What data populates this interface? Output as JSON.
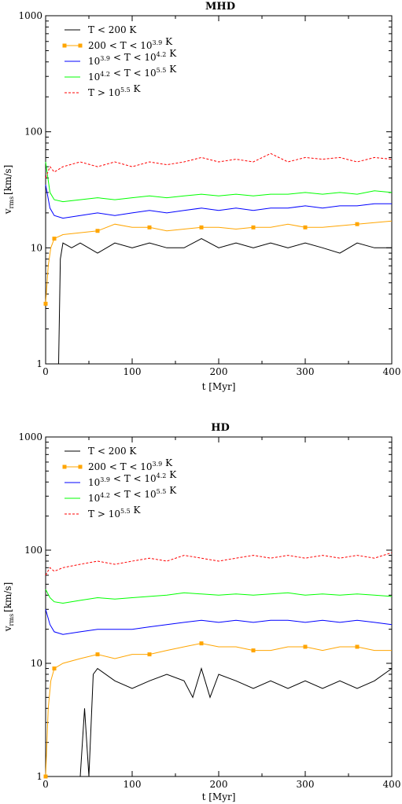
{
  "colors": {
    "cold": "#000000",
    "cool": "#FFA500",
    "warm": "#0000FF",
    "hot": "#00FF00",
    "very_hot": "#FF0000"
  },
  "chart_data": [
    {
      "type": "line",
      "title": "MHD",
      "xlabel": "t [Myr]",
      "ylabel_main": "v",
      "ylabel_sub": "rms",
      "ylabel_unit": "[km/s]",
      "xlim": [
        0,
        400
      ],
      "ylim": [
        1,
        1000
      ],
      "yscale": "log",
      "grid": false,
      "legend_position": "top-left",
      "x_ticks": [
        "0",
        "100",
        "200",
        "300",
        "400"
      ],
      "y_ticks": [
        "1",
        "10",
        "100",
        "1000"
      ],
      "series": [
        {
          "name": "T < 200 K",
          "color_key": "cold",
          "style": "solid",
          "marker": "none",
          "x": [
            15,
            17,
            20,
            30,
            40,
            60,
            80,
            100,
            120,
            140,
            160,
            180,
            200,
            220,
            240,
            260,
            280,
            300,
            320,
            340,
            360,
            380,
            400
          ],
          "y": [
            1,
            8,
            11,
            10,
            11,
            9,
            11,
            10,
            11,
            10,
            10,
            12,
            10,
            11,
            10,
            11,
            10,
            11,
            10,
            9,
            11,
            10,
            10
          ]
        },
        {
          "name": "200 < T < 10^3.9 K",
          "color_key": "cool",
          "style": "solid",
          "marker": "square",
          "x": [
            0,
            3,
            6,
            10,
            20,
            40,
            60,
            80,
            100,
            120,
            140,
            160,
            180,
            200,
            220,
            240,
            260,
            280,
            300,
            320,
            340,
            360,
            380,
            400
          ],
          "y": [
            3.3,
            7,
            10,
            12,
            13,
            13.5,
            14,
            16,
            15,
            15,
            14,
            14.5,
            15,
            15,
            14.5,
            15,
            15,
            16,
            15,
            15,
            15.5,
            16,
            16.5,
            17
          ]
        },
        {
          "name": "10^3.9 < T < 10^4.2 K",
          "color_key": "warm",
          "style": "solid",
          "marker": "none",
          "x": [
            0,
            5,
            10,
            20,
            40,
            60,
            80,
            100,
            120,
            140,
            160,
            180,
            200,
            220,
            240,
            260,
            280,
            300,
            320,
            340,
            360,
            380,
            400
          ],
          "y": [
            35,
            22,
            19,
            18,
            19,
            20,
            19,
            20,
            21,
            20,
            21,
            22,
            21,
            22,
            21,
            22,
            22,
            23,
            22,
            23,
            23,
            24,
            24
          ]
        },
        {
          "name": "10^4.2 < T < 10^5.5 K",
          "color_key": "hot",
          "style": "solid",
          "marker": "none",
          "x": [
            0,
            5,
            10,
            20,
            40,
            60,
            80,
            100,
            120,
            140,
            160,
            180,
            200,
            220,
            240,
            260,
            280,
            300,
            320,
            340,
            360,
            380,
            400
          ],
          "y": [
            55,
            30,
            26,
            25,
            26,
            27,
            26,
            27,
            28,
            27,
            28,
            29,
            28,
            29,
            28,
            29,
            29,
            30,
            29,
            30,
            29,
            31,
            30
          ]
        },
        {
          "name": "T > 10^5.5 K",
          "color_key": "very_hot",
          "style": "dashed",
          "marker": "none",
          "x": [
            0,
            5,
            10,
            20,
            40,
            60,
            80,
            100,
            120,
            140,
            160,
            180,
            200,
            220,
            240,
            260,
            280,
            300,
            320,
            340,
            360,
            380,
            400
          ],
          "y": [
            40,
            50,
            45,
            50,
            55,
            50,
            55,
            50,
            55,
            52,
            55,
            60,
            55,
            58,
            55,
            65,
            55,
            60,
            58,
            60,
            55,
            60,
            58
          ]
        }
      ]
    },
    {
      "type": "line",
      "title": "HD",
      "xlabel": "t [Myr]",
      "ylabel_main": "v",
      "ylabel_sub": "rms",
      "ylabel_unit": "[km/s]",
      "xlim": [
        0,
        400
      ],
      "ylim": [
        1,
        1000
      ],
      "yscale": "log",
      "grid": false,
      "legend_position": "top-left",
      "x_ticks": [
        "0",
        "100",
        "200",
        "300",
        "400"
      ],
      "y_ticks": [
        "1",
        "10",
        "100",
        "1000"
      ],
      "series": [
        {
          "name": "T < 200 K",
          "color_key": "cold",
          "style": "solid",
          "marker": "none",
          "x": [
            40,
            45,
            50,
            55,
            60,
            80,
            100,
            120,
            140,
            160,
            170,
            180,
            190,
            200,
            220,
            240,
            260,
            280,
            300,
            320,
            340,
            360,
            380,
            400
          ],
          "y": [
            1,
            4,
            1,
            8,
            9,
            7,
            6,
            7,
            8,
            7,
            5,
            9,
            5,
            8,
            7,
            6,
            7,
            6,
            7,
            6,
            7,
            6,
            7,
            9
          ]
        },
        {
          "name": "200 < T < 10^3.9 K",
          "color_key": "cool",
          "style": "solid",
          "marker": "square",
          "x": [
            0,
            3,
            6,
            10,
            20,
            40,
            60,
            80,
            100,
            120,
            140,
            160,
            180,
            200,
            220,
            240,
            260,
            280,
            300,
            320,
            340,
            360,
            380,
            400
          ],
          "y": [
            1,
            4,
            7,
            9,
            10,
            11,
            12,
            11,
            12,
            12,
            13,
            14,
            15,
            14,
            14,
            13,
            13,
            14,
            14,
            13,
            14,
            14,
            13,
            13
          ]
        },
        {
          "name": "10^3.9 < T < 10^4.2 K",
          "color_key": "warm",
          "style": "solid",
          "marker": "none",
          "x": [
            0,
            5,
            10,
            20,
            40,
            60,
            80,
            100,
            120,
            140,
            160,
            180,
            200,
            220,
            240,
            260,
            280,
            300,
            320,
            340,
            360,
            380,
            400
          ],
          "y": [
            30,
            22,
            19,
            18,
            19,
            20,
            20,
            20,
            21,
            22,
            23,
            24,
            23,
            24,
            23,
            24,
            24,
            23,
            24,
            23,
            24,
            23,
            22
          ]
        },
        {
          "name": "10^4.2 < T < 10^5.5 K",
          "color_key": "hot",
          "style": "solid",
          "marker": "none",
          "x": [
            0,
            5,
            10,
            20,
            40,
            60,
            80,
            100,
            120,
            140,
            160,
            180,
            200,
            220,
            240,
            260,
            280,
            300,
            320,
            340,
            360,
            380,
            400
          ],
          "y": [
            45,
            38,
            35,
            34,
            36,
            38,
            37,
            38,
            39,
            40,
            42,
            41,
            40,
            41,
            40,
            41,
            42,
            40,
            41,
            40,
            41,
            40,
            39
          ]
        },
        {
          "name": "T > 10^5.5 K",
          "color_key": "very_hot",
          "style": "dashed",
          "marker": "none",
          "x": [
            0,
            5,
            10,
            20,
            40,
            60,
            80,
            100,
            120,
            140,
            160,
            180,
            200,
            220,
            240,
            260,
            280,
            300,
            320,
            340,
            360,
            380,
            400
          ],
          "y": [
            60,
            70,
            65,
            70,
            75,
            80,
            75,
            80,
            85,
            80,
            90,
            85,
            80,
            85,
            90,
            85,
            90,
            85,
            90,
            85,
            90,
            85,
            95
          ]
        }
      ]
    }
  ]
}
